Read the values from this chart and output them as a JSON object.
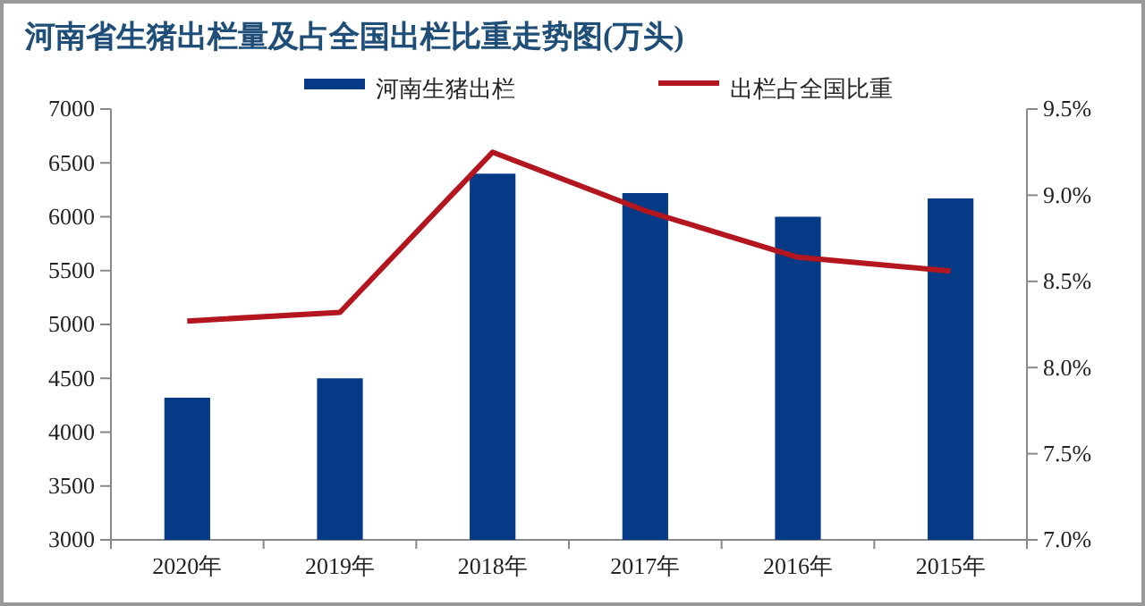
{
  "chart_data": {
    "type": "bar",
    "title": "河南省生猪出栏量及占全国出栏比重走势图(万头)",
    "categories": [
      "2020年",
      "2019年",
      "2018年",
      "2017年",
      "2016年",
      "2015年"
    ],
    "series": [
      {
        "name": "河南生猪出栏",
        "color": "#053a86",
        "values": [
          4320,
          4500,
          6400,
          6220,
          6000,
          6170
        ]
      },
      {
        "name": "出栏占全国比重",
        "type": "line",
        "axis": "y2",
        "color": "#b3161e",
        "values": [
          8.27,
          8.32,
          9.25,
          8.91,
          8.64,
          8.56
        ]
      }
    ],
    "ylim": [
      3000,
      7000
    ],
    "yticks": [
      3000,
      3500,
      4000,
      4500,
      5000,
      5500,
      6000,
      6500,
      7000
    ],
    "y2lim": [
      7,
      9.5
    ],
    "y2ticks": [
      {
        "value": 7,
        "label": "7.0%"
      },
      {
        "value": 7.5,
        "label": "7.5%"
      },
      {
        "value": 8,
        "label": "8.0%"
      },
      {
        "value": 8.5,
        "label": "8.5%"
      },
      {
        "value": 9,
        "label": "9.0%"
      },
      {
        "value": 9.5,
        "label": "9.5%"
      }
    ],
    "legend": "top",
    "marker": "none",
    "line_style": "solid"
  }
}
